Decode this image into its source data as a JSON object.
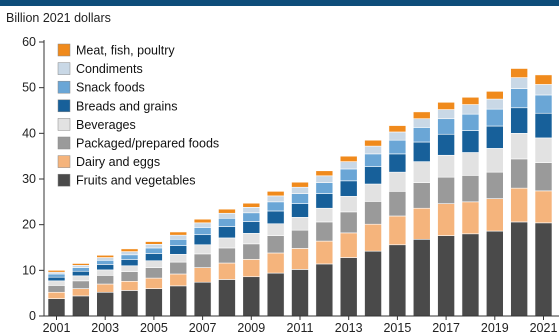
{
  "chart_data": {
    "type": "bar",
    "stacked": true,
    "ylabel": "Billion 2021 dollars",
    "xlabel": "",
    "title": "",
    "ylim": [
      0,
      60
    ],
    "yticks": [
      0,
      10,
      20,
      30,
      40,
      50,
      60
    ],
    "grid": false,
    "legend_position": "top-left",
    "categories": [
      "2001",
      "2002",
      "2003",
      "2004",
      "2005",
      "2006",
      "2007",
      "2008",
      "2009",
      "2010",
      "2011",
      "2012",
      "2013",
      "2014",
      "2015",
      "2016",
      "2017",
      "2018",
      "2019",
      "2020",
      "2021"
    ],
    "xtick_labels": [
      "2001",
      "2003",
      "2005",
      "2007",
      "2009",
      "2011",
      "2013",
      "2015",
      "2017",
      "2019",
      "2021"
    ],
    "series": [
      {
        "name": "Fruits and vegetables",
        "color": "#4a4a4a",
        "values": [
          3.8,
          4.4,
          5.2,
          5.6,
          6.0,
          6.6,
          7.4,
          8.0,
          8.6,
          9.4,
          10.2,
          11.4,
          12.8,
          14.2,
          15.6,
          16.8,
          17.6,
          18.0,
          18.6,
          20.6,
          20.4
        ]
      },
      {
        "name": "Dairy and eggs",
        "color": "#f5b47c",
        "values": [
          1.4,
          1.6,
          1.8,
          2.0,
          2.3,
          2.6,
          3.2,
          3.6,
          3.8,
          4.4,
          4.6,
          5.0,
          5.4,
          5.9,
          6.3,
          6.8,
          7.0,
          7.0,
          7.1,
          7.4,
          7.0
        ]
      },
      {
        "name": "Packaged/prepared foods",
        "color": "#9a9a9a",
        "values": [
          1.5,
          1.7,
          1.9,
          2.1,
          2.3,
          2.6,
          3.0,
          3.3,
          3.4,
          3.8,
          4.0,
          4.2,
          4.6,
          5.0,
          5.4,
          5.6,
          5.8,
          5.8,
          5.8,
          6.4,
          6.2
        ]
      },
      {
        "name": "Beverages",
        "color": "#e2e2e2",
        "values": [
          1.0,
          1.1,
          1.2,
          1.3,
          1.5,
          1.7,
          2.0,
          2.2,
          2.3,
          2.6,
          2.8,
          3.0,
          3.4,
          3.8,
          4.2,
          4.6,
          4.8,
          5.0,
          5.2,
          5.6,
          5.4
        ]
      },
      {
        "name": "Breads and grains",
        "color": "#17609a",
        "values": [
          0.8,
          1.0,
          1.2,
          1.4,
          1.6,
          1.9,
          2.2,
          2.5,
          2.6,
          2.8,
          3.0,
          3.2,
          3.4,
          3.8,
          4.0,
          4.3,
          4.6,
          4.8,
          4.9,
          5.6,
          5.4
        ]
      },
      {
        "name": "Snack foods",
        "color": "#6aa6d6",
        "values": [
          0.7,
          0.8,
          0.9,
          1.0,
          1.2,
          1.4,
          1.6,
          1.8,
          1.9,
          2.0,
          2.2,
          2.4,
          2.6,
          2.8,
          3.0,
          3.2,
          3.4,
          3.6,
          3.7,
          4.2,
          4.0
        ]
      },
      {
        "name": "Condiments",
        "color": "#c9d8e6",
        "values": [
          0.4,
          0.5,
          0.6,
          0.7,
          0.8,
          0.9,
          1.0,
          1.1,
          1.2,
          1.3,
          1.4,
          1.5,
          1.6,
          1.7,
          1.8,
          1.9,
          2.0,
          2.1,
          2.2,
          2.4,
          2.3
        ]
      },
      {
        "name": "Meat, fish, poultry",
        "color": "#f08a1c",
        "values": [
          0.4,
          0.4,
          0.5,
          0.6,
          0.6,
          0.7,
          0.8,
          0.9,
          0.9,
          1.0,
          1.1,
          1.1,
          1.2,
          1.3,
          1.4,
          1.5,
          1.6,
          1.6,
          1.7,
          2.0,
          2.1
        ]
      }
    ]
  }
}
